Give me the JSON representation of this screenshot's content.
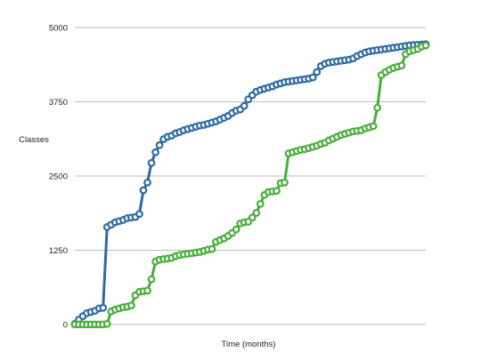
{
  "chart_data": {
    "type": "line",
    "title": "",
    "xlabel": "Time (months)",
    "ylabel": "Classes",
    "ylim": [
      0,
      5000
    ],
    "yticks": [
      0,
      1250,
      2500,
      3750,
      5000
    ],
    "ytick_labels": [
      "0",
      "1250",
      "2500",
      "3750",
      "5000"
    ],
    "grid": true,
    "marker": "hollow-circle",
    "series": [
      {
        "color": "#2f6aa3",
        "values": [
          10,
          80,
          140,
          190,
          210,
          230,
          270,
          280,
          1640,
          1680,
          1720,
          1740,
          1760,
          1790,
          1800,
          1810,
          1860,
          2260,
          2390,
          2720,
          2900,
          3020,
          3120,
          3160,
          3180,
          3220,
          3240,
          3270,
          3290,
          3310,
          3330,
          3350,
          3360,
          3380,
          3400,
          3420,
          3450,
          3480,
          3510,
          3560,
          3600,
          3620,
          3680,
          3790,
          3860,
          3920,
          3950,
          3970,
          3990,
          4010,
          4040,
          4060,
          4080,
          4090,
          4100,
          4110,
          4120,
          4130,
          4140,
          4160,
          4250,
          4350,
          4390,
          4410,
          4420,
          4430,
          4440,
          4450,
          4460,
          4480,
          4520,
          4550,
          4580,
          4600,
          4610,
          4620,
          4630,
          4640,
          4650,
          4660,
          4670,
          4680,
          4690,
          4700,
          4705,
          4710,
          4715,
          4720
        ]
      },
      {
        "color": "#4aad3c",
        "values": [
          0,
          0,
          0,
          0,
          0,
          0,
          0,
          0,
          10,
          220,
          250,
          270,
          290,
          300,
          320,
          490,
          550,
          560,
          570,
          760,
          1060,
          1090,
          1100,
          1110,
          1120,
          1150,
          1170,
          1180,
          1190,
          1200,
          1210,
          1220,
          1240,
          1260,
          1270,
          1390,
          1420,
          1450,
          1490,
          1540,
          1600,
          1700,
          1720,
          1730,
          1800,
          1880,
          2030,
          2180,
          2230,
          2240,
          2250,
          2380,
          2390,
          2880,
          2900,
          2920,
          2940,
          2950,
          2970,
          2990,
          3010,
          3040,
          3060,
          3100,
          3130,
          3160,
          3190,
          3210,
          3230,
          3250,
          3260,
          3270,
          3300,
          3320,
          3340,
          3650,
          4200,
          4250,
          4290,
          4320,
          4340,
          4360,
          4550,
          4600,
          4620,
          4640,
          4680,
          4700
        ]
      }
    ]
  }
}
